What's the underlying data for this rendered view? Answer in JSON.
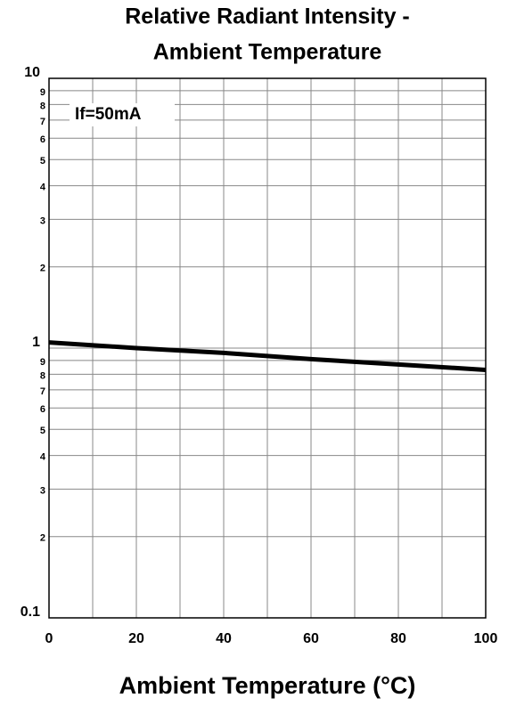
{
  "chart_data": {
    "type": "line",
    "title": [
      "Relative Radiant Intensity -",
      "Ambient Temperature"
    ],
    "x_label": "Ambient Temperature (°C)",
    "annotation": "If=50mA",
    "x": [
      0,
      20,
      40,
      60,
      80,
      100
    ],
    "series": [
      {
        "name": "If=50mA",
        "color": "#000000",
        "values": [
          1.05,
          1.0,
          0.96,
          0.91,
          0.87,
          0.83
        ]
      }
    ],
    "xlim": [
      0,
      100
    ],
    "xticks": [
      0,
      20,
      40,
      60,
      80,
      100
    ],
    "xminorticks": [
      10,
      30,
      50,
      70,
      90
    ],
    "ylim": [
      0.1,
      10
    ],
    "log_y": true,
    "grid": true,
    "yticks": [
      10,
      9,
      8,
      7,
      6,
      5,
      4,
      3,
      2,
      1,
      {
        "value": 0.9,
        "label": "9"
      },
      {
        "value": 0.8,
        "label": "8"
      },
      {
        "value": 0.7,
        "label": "7"
      },
      {
        "value": 0.6,
        "label": "6"
      },
      {
        "value": 0.5,
        "label": "5"
      },
      {
        "value": 0.4,
        "label": "4"
      },
      {
        "value": 0.3,
        "label": "3"
      },
      {
        "value": 0.2,
        "label": "2"
      },
      0.1
    ]
  }
}
